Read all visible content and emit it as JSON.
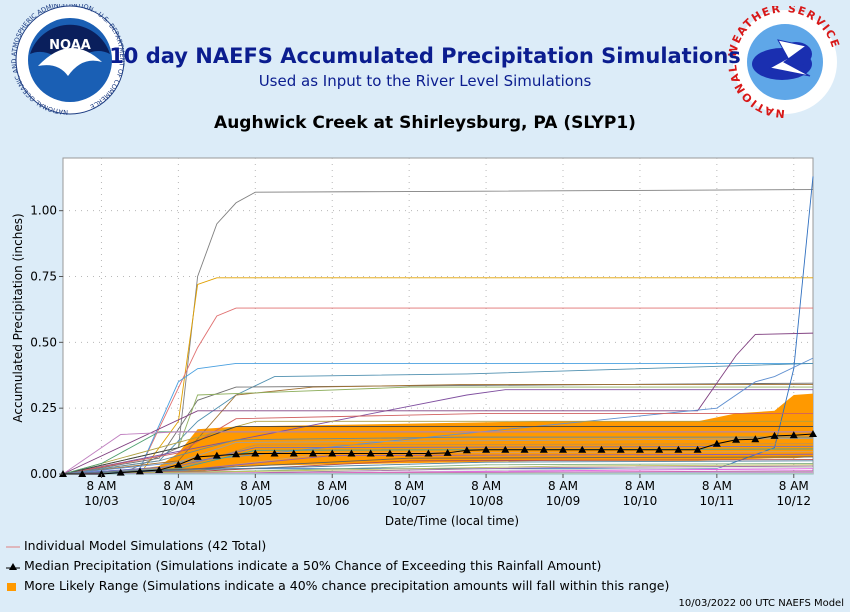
{
  "header": {
    "title": "10 day NAEFS Accumulated Precipitation Simulations",
    "subtitle": "Used as Input to the River Level Simulations",
    "location": "Aughwick Creek at Shirleysburg, PA (SLYP1)",
    "noaa_logo_text": "NOAA",
    "noaa_ring_text": "NATIONAL OCEANIC AND ATMOSPHERIC ADMINISTRATION · U.S. DEPARTMENT OF COMMERCE",
    "nws_ring_text": "NATIONAL WEATHER SERVICE"
  },
  "legend": {
    "individual": "Individual Model Simulations (42 Total)",
    "median": "Median Precipitation (Simulations indicate a 50% Chance of Exceeding this Rainfall Amount)",
    "range": "More Likely Range (Simulations indicate a 40% chance precipitation amounts will fall within this range)"
  },
  "footer": "10/03/2022 00 UTC NAEFS Model",
  "colors": {
    "title": "#0b1d8f",
    "range_fill": "#ff9900",
    "median": "#000000",
    "background": "#dcecf8",
    "plot_bg": "#ffffff"
  },
  "chart_data": {
    "type": "line",
    "xlabel": "Date/Time (local time)",
    "ylabel": "Accumulated Precipitation (inches)",
    "ylim": [
      0,
      1.2
    ],
    "xlim": [
      "10/02 20:00",
      "10/12 14:00"
    ],
    "x_ticks": [
      {
        "t": "10/03 08:00",
        "line1": "8 AM",
        "line2": "10/03"
      },
      {
        "t": "10/04 08:00",
        "line1": "8 AM",
        "line2": "10/04"
      },
      {
        "t": "10/05 08:00",
        "line1": "8 AM",
        "line2": "10/05"
      },
      {
        "t": "10/06 08:00",
        "line1": "8 AM",
        "line2": "10/06"
      },
      {
        "t": "10/07 08:00",
        "line1": "8 AM",
        "line2": "10/07"
      },
      {
        "t": "10/08 08:00",
        "line1": "8 AM",
        "line2": "10/08"
      },
      {
        "t": "10/09 08:00",
        "line1": "8 AM",
        "line2": "10/09"
      },
      {
        "t": "10/10 08:00",
        "line1": "8 AM",
        "line2": "10/10"
      },
      {
        "t": "10/11 08:00",
        "line1": "8 AM",
        "line2": "10/11"
      },
      {
        "t": "10/12 08:00",
        "line1": "8 AM",
        "line2": "10/12"
      }
    ],
    "y_ticks": [
      "0.00",
      "0.25",
      "0.50",
      "0.75",
      "1.00"
    ],
    "grid": true,
    "median": {
      "name": "Median Precipitation",
      "x": [
        "10/02 20:00",
        "10/03 02:00",
        "10/03 08:00",
        "10/03 14:00",
        "10/03 20:00",
        "10/04 02:00",
        "10/04 08:00",
        "10/04 14:00",
        "10/04 20:00",
        "10/05 02:00",
        "10/05 08:00",
        "10/05 14:00",
        "10/05 20:00",
        "10/06 02:00",
        "10/06 08:00",
        "10/06 14:00",
        "10/06 20:00",
        "10/07 02:00",
        "10/07 08:00",
        "10/07 14:00",
        "10/07 20:00",
        "10/08 02:00",
        "10/08 08:00",
        "10/08 14:00",
        "10/08 20:00",
        "10/09 02:00",
        "10/09 08:00",
        "10/09 14:00",
        "10/09 20:00",
        "10/10 02:00",
        "10/10 08:00",
        "10/10 14:00",
        "10/10 20:00",
        "10/11 02:00",
        "10/11 08:00",
        "10/11 14:00",
        "10/11 20:00",
        "10/12 02:00",
        "10/12 08:00",
        "10/12 14:00"
      ],
      "y": [
        0,
        0,
        0,
        0.005,
        0.01,
        0.015,
        0.035,
        0.065,
        0.07,
        0.075,
        0.078,
        0.078,
        0.078,
        0.078,
        0.078,
        0.078,
        0.078,
        0.078,
        0.078,
        0.078,
        0.08,
        0.09,
        0.092,
        0.092,
        0.092,
        0.092,
        0.092,
        0.092,
        0.092,
        0.092,
        0.092,
        0.092,
        0.092,
        0.092,
        0.115,
        0.13,
        0.132,
        0.145,
        0.147,
        0.152
      ]
    },
    "range": {
      "name": "More Likely Range",
      "x": [
        "10/03 14:00",
        "10/04 02:00",
        "10/04 08:00",
        "10/04 14:00",
        "10/05 02:00",
        "10/06 02:00",
        "10/07 02:00",
        "10/08 02:00",
        "10/09 02:00",
        "10/10 02:00",
        "10/11 02:00",
        "10/11 14:00",
        "10/12 02:00",
        "10/12 08:00",
        "10/12 14:00"
      ],
      "low": [
        0,
        0,
        0.005,
        0.01,
        0.03,
        0.035,
        0.04,
        0.045,
        0.05,
        0.05,
        0.05,
        0.055,
        0.06,
        0.06,
        0.065
      ],
      "high": [
        0.01,
        0.03,
        0.08,
        0.17,
        0.18,
        0.185,
        0.19,
        0.195,
        0.2,
        0.2,
        0.2,
        0.23,
        0.24,
        0.3,
        0.305
      ]
    },
    "series": [
      {
        "color": "#808080",
        "x": [
          "10/02 20:00",
          "10/03 14:00",
          "10/04 08:00",
          "10/04 14:00",
          "10/04 20:00",
          "10/05 02:00",
          "10/05 08:00",
          "10/12 14:00"
        ],
        "y": [
          0,
          0,
          0.1,
          0.75,
          0.95,
          1.03,
          1.07,
          1.08
        ]
      },
      {
        "color": "#e0a000",
        "x": [
          "10/02 20:00",
          "10/03 20:00",
          "10/04 08:00",
          "10/04 14:00",
          "10/04 20:00",
          "10/12 14:00"
        ],
        "y": [
          0,
          0,
          0.2,
          0.72,
          0.745,
          0.745
        ]
      },
      {
        "color": "#e07070",
        "x": [
          "10/02 20:00",
          "10/03 20:00",
          "10/04 14:00",
          "10/04 20:00",
          "10/05 02:00",
          "10/12 14:00"
        ],
        "y": [
          0,
          0.02,
          0.48,
          0.6,
          0.63,
          0.63
        ]
      },
      {
        "color": "#4aa0e0",
        "x": [
          "10/02 20:00",
          "10/03 20:00",
          "10/04 08:00",
          "10/04 14:00",
          "10/05 02:00",
          "10/12 14:00"
        ],
        "y": [
          0,
          0.02,
          0.35,
          0.4,
          0.42,
          0.42
        ]
      },
      {
        "color": "#5090b0",
        "x": [
          "10/02 20:00",
          "10/04 02:00",
          "10/04 14:00",
          "10/05 02:00",
          "10/05 14:00",
          "10/08 02:00",
          "10/12 14:00"
        ],
        "y": [
          0,
          0.05,
          0.2,
          0.3,
          0.37,
          0.38,
          0.42
        ]
      },
      {
        "color": "#707070",
        "x": [
          "10/02 20:00",
          "10/04 02:00",
          "10/04 14:00",
          "10/05 02:00",
          "10/12 14:00"
        ],
        "y": [
          0,
          0.06,
          0.28,
          0.33,
          0.345
        ]
      },
      {
        "color": "#a07030",
        "x": [
          "10/02 20:00",
          "10/04 08:00",
          "10/05 02:00",
          "10/06 02:00",
          "10/08 02:00",
          "10/12 14:00"
        ],
        "y": [
          0,
          0.05,
          0.3,
          0.33,
          0.34,
          0.34
        ]
      },
      {
        "color": "#90b060",
        "x": [
          "10/02 20:00",
          "10/04 08:00",
          "10/04 14:00",
          "10/07 08:00",
          "10/12 14:00"
        ],
        "y": [
          0,
          0.1,
          0.3,
          0.33,
          0.33
        ]
      },
      {
        "color": "#8050a0",
        "x": [
          "10/02 20:00",
          "10/08 02:00",
          "10/08 14:00",
          "10/12 14:00"
        ],
        "y": [
          0,
          0.3,
          0.32,
          0.32
        ]
      },
      {
        "color": "#804080",
        "x": [
          "10/02 20:00",
          "10/04 14:00",
          "10/11 02:00",
          "10/11 14:00",
          "10/11 20:00",
          "10/12 14:00"
        ],
        "y": [
          0,
          0.24,
          0.24,
          0.45,
          0.53,
          0.535
        ]
      },
      {
        "color": "#3070c0",
        "x": [
          "10/02 20:00",
          "10/04 14:00",
          "10/11 08:00",
          "10/12 02:00",
          "10/12 08:00",
          "10/12 14:00"
        ],
        "y": [
          0,
          0.02,
          0.02,
          0.1,
          0.4,
          1.13
        ]
      },
      {
        "color": "#6090d0",
        "x": [
          "10/02 20:00",
          "10/11 08:00",
          "10/11 20:00",
          "10/12 02:00",
          "10/12 14:00"
        ],
        "y": [
          0,
          0.25,
          0.35,
          0.37,
          0.44
        ]
      },
      {
        "color": "#d06060",
        "x": [
          "10/02 20:00",
          "10/04 08:00",
          "10/05 02:00",
          "10/08 08:00",
          "10/12 14:00"
        ],
        "y": [
          0,
          0.08,
          0.21,
          0.23,
          0.23
        ]
      },
      {
        "color": "#b0a040",
        "x": [
          "10/02 20:00",
          "10/04 08:00",
          "10/05 08:00",
          "10/12 14:00"
        ],
        "y": [
          0,
          0.12,
          0.2,
          0.2
        ]
      },
      {
        "color": "#404040",
        "x": [
          "10/02 20:00",
          "10/04 08:00",
          "10/05 02:00",
          "10/12 14:00"
        ],
        "y": [
          0,
          0.1,
          0.18,
          0.18
        ]
      },
      {
        "color": "#50a070",
        "x": [
          "10/02 20:00",
          "10/03 08:00",
          "10/04 02:00",
          "10/12 14:00"
        ],
        "y": [
          0,
          0.04,
          0.16,
          0.16
        ]
      },
      {
        "color": "#c080c0",
        "x": [
          "10/02 20:00",
          "10/03 14:00",
          "10/04 08:00",
          "10/12 14:00"
        ],
        "y": [
          0,
          0.15,
          0.16,
          0.16
        ]
      },
      {
        "color": "#6a8a9a",
        "x": [
          "10/02 20:00",
          "10/04 02:00",
          "10/05 02:00",
          "10/08 02:00",
          "10/12 14:00"
        ],
        "y": [
          0,
          0.05,
          0.13,
          0.14,
          0.14
        ]
      },
      {
        "color": "#a0a0a0",
        "x": [
          "10/02 20:00",
          "10/04 02:00",
          "10/05 02:00",
          "10/10 02:00",
          "10/12 14:00"
        ],
        "y": [
          0,
          0.02,
          0.12,
          0.13,
          0.135
        ]
      },
      {
        "color": "#c09050",
        "x": [
          "10/02 20:00",
          "10/04 08:00",
          "10/05 08:00",
          "10/12 14:00"
        ],
        "y": [
          0,
          0.02,
          0.11,
          0.115
        ]
      },
      {
        "color": "#7070c0",
        "x": [
          "10/02 20:00",
          "10/04 08:00",
          "10/05 08:00",
          "10/12 14:00"
        ],
        "y": [
          0,
          0.03,
          0.1,
          0.105
        ]
      },
      {
        "color": "#40a0a0",
        "x": [
          "10/02 20:00",
          "10/04 08:00",
          "10/05 08:00",
          "10/12 14:00"
        ],
        "y": [
          0,
          0.02,
          0.09,
          0.095
        ]
      },
      {
        "color": "#d0a070",
        "x": [
          "10/02 20:00",
          "10/04 08:00",
          "10/06 08:00",
          "10/12 14:00"
        ],
        "y": [
          0,
          0.01,
          0.08,
          0.085
        ]
      },
      {
        "color": "#9060b0",
        "x": [
          "10/02 20:00",
          "10/04 14:00",
          "10/06 08:00",
          "10/12 14:00"
        ],
        "y": [
          0,
          0.02,
          0.07,
          0.075
        ]
      },
      {
        "color": "#606060",
        "x": [
          "10/02 20:00",
          "10/04 14:00",
          "10/07 08:00",
          "10/12 14:00"
        ],
        "y": [
          0,
          0.02,
          0.06,
          0.065
        ]
      },
      {
        "color": "#b05050",
        "x": [
          "10/02 20:00",
          "10/04 14:00",
          "10/07 08:00",
          "10/12 14:00"
        ],
        "y": [
          0,
          0.01,
          0.05,
          0.055
        ]
      },
      {
        "color": "#5080a0",
        "x": [
          "10/02 20:00",
          "10/05 02:00",
          "10/08 08:00",
          "10/12 14:00"
        ],
        "y": [
          0,
          0.02,
          0.045,
          0.05
        ]
      },
      {
        "color": "#80b080",
        "x": [
          "10/02 20:00",
          "10/05 02:00",
          "10/08 08:00",
          "10/12 14:00"
        ],
        "y": [
          0,
          0.01,
          0.035,
          0.04
        ]
      },
      {
        "color": "#c0c060",
        "x": [
          "10/02 20:00",
          "10/05 08:00",
          "10/09 08:00",
          "10/12 14:00"
        ],
        "y": [
          0,
          0.01,
          0.03,
          0.035
        ]
      },
      {
        "color": "#a070a0",
        "x": [
          "10/02 20:00",
          "10/05 08:00",
          "10/09 08:00",
          "10/12 14:00"
        ],
        "y": [
          0,
          0.005,
          0.025,
          0.03
        ]
      },
      {
        "color": "#d0d0d0",
        "x": [
          "10/02 20:00",
          "10/06 08:00",
          "10/10 08:00",
          "10/12 14:00"
        ],
        "y": [
          0,
          0.005,
          0.02,
          0.025
        ]
      },
      {
        "color": "#e060e0",
        "x": [
          "10/02 20:00",
          "10/06 08:00",
          "10/10 08:00",
          "10/12 14:00"
        ],
        "y": [
          0,
          0.005,
          0.015,
          0.02
        ]
      },
      {
        "color": "#c040c0",
        "x": [
          "10/02 20:00",
          "10/07 08:00",
          "10/12 14:00"
        ],
        "y": [
          0,
          0.005,
          0.012
        ]
      },
      {
        "color": "#e080a0",
        "x": [
          "10/02 20:00",
          "10/08 08:00",
          "10/12 14:00"
        ],
        "y": [
          0,
          0.005,
          0.01
        ]
      },
      {
        "color": "#a0c0d0",
        "x": [
          "10/02 20:00",
          "10/08 08:00",
          "10/12 14:00"
        ],
        "y": [
          0,
          0.003,
          0.008
        ]
      },
      {
        "color": "#d080d0",
        "x": [
          "10/02 20:00",
          "10/09 08:00",
          "10/12 14:00"
        ],
        "y": [
          0,
          0.002,
          0.006
        ]
      },
      {
        "color": "#b0b0e0",
        "x": [
          "10/02 20:00",
          "10/12 14:00"
        ],
        "y": [
          0,
          0.004
        ]
      },
      {
        "color": "#e0c0c0",
        "x": [
          "10/02 20:00",
          "10/12 14:00"
        ],
        "y": [
          0,
          0.003
        ]
      },
      {
        "color": "#c0e0c0",
        "x": [
          "10/02 20:00",
          "10/12 14:00"
        ],
        "y": [
          0,
          0.002
        ]
      },
      {
        "color": "#e0e0a0",
        "x": [
          "10/02 20:00",
          "10/12 14:00"
        ],
        "y": [
          0,
          0.001
        ]
      },
      {
        "color": "#c0a0e0",
        "x": [
          "10/02 20:00",
          "10/12 14:00"
        ],
        "y": [
          0,
          0.0005
        ]
      },
      {
        "color": "#90c0c0",
        "x": [
          "10/02 20:00",
          "10/12 14:00"
        ],
        "y": [
          0,
          0
        ]
      }
    ]
  }
}
